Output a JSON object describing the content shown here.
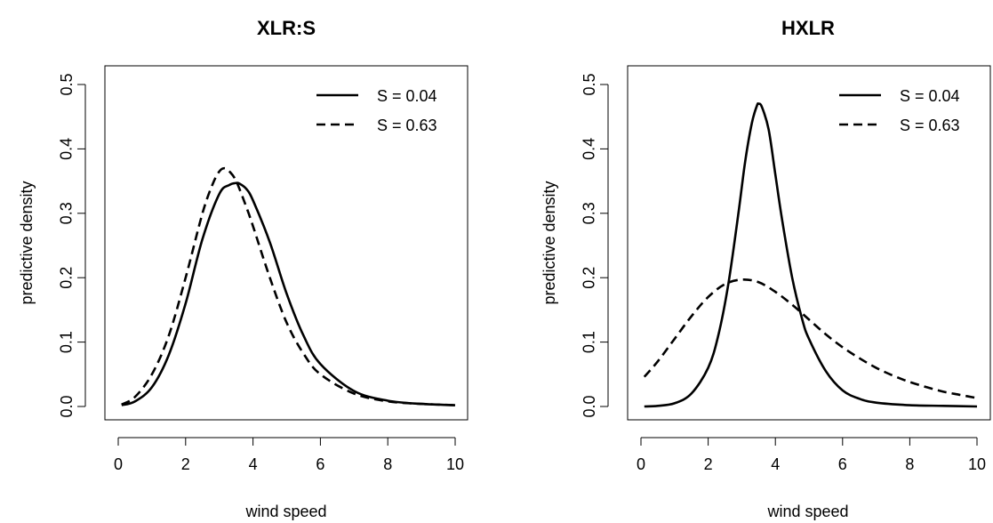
{
  "chart_data": [
    {
      "type": "line",
      "title": "XLR:S",
      "xlabel": "wind speed",
      "ylabel": "predictive density",
      "xlim": [
        0.1,
        10
      ],
      "ylim": [
        0,
        0.5
      ],
      "xticks": [
        "0",
        "2",
        "4",
        "6",
        "8",
        "10"
      ],
      "yticks": [
        "0.0",
        "0.1",
        "0.2",
        "0.3",
        "0.4",
        "0.5"
      ],
      "legend_position": "top-right",
      "series": [
        {
          "name": "S = 0.04",
          "linestyle": "solid",
          "color": "#000000",
          "x": [
            0.1,
            0.5,
            1.0,
            1.5,
            2.0,
            2.5,
            3.0,
            3.3,
            3.5,
            3.6,
            3.8,
            4.0,
            4.5,
            5.0,
            5.5,
            6.0,
            7.0,
            8.0,
            9.0,
            10.0
          ],
          "y": [
            0.002,
            0.008,
            0.03,
            0.08,
            0.16,
            0.26,
            0.33,
            0.344,
            0.347,
            0.346,
            0.338,
            0.32,
            0.255,
            0.175,
            0.11,
            0.066,
            0.024,
            0.009,
            0.004,
            0.002
          ]
        },
        {
          "name": "S = 0.63",
          "linestyle": "dashed",
          "color": "#000000",
          "x": [
            0.1,
            0.5,
            1.0,
            1.5,
            2.0,
            2.5,
            2.8,
            3.0,
            3.15,
            3.3,
            3.5,
            3.8,
            4.0,
            4.5,
            5.0,
            5.5,
            6.0,
            7.0,
            8.0,
            9.0,
            10.0
          ],
          "y": [
            0.003,
            0.015,
            0.05,
            0.11,
            0.2,
            0.3,
            0.345,
            0.365,
            0.37,
            0.365,
            0.35,
            0.31,
            0.28,
            0.2,
            0.13,
            0.082,
            0.05,
            0.02,
            0.008,
            0.004,
            0.002
          ]
        }
      ]
    },
    {
      "type": "line",
      "title": "HXLR",
      "xlabel": "wind speed",
      "ylabel": "predictive density",
      "xlim": [
        0.1,
        10
      ],
      "ylim": [
        0,
        0.5
      ],
      "xticks": [
        "0",
        "2",
        "4",
        "6",
        "8",
        "10"
      ],
      "yticks": [
        "0.0",
        "0.1",
        "0.2",
        "0.3",
        "0.4",
        "0.5"
      ],
      "legend_position": "top-right",
      "series": [
        {
          "name": "S = 0.04",
          "linestyle": "solid",
          "color": "#000000",
          "x": [
            0.1,
            0.5,
            1.0,
            1.5,
            2.0,
            2.3,
            2.6,
            2.9,
            3.1,
            3.3,
            3.45,
            3.5,
            3.6,
            3.8,
            4.0,
            4.2,
            4.5,
            4.8,
            5.0,
            5.5,
            6.0,
            6.5,
            7.0,
            8.0,
            9.0,
            10.0
          ],
          "y": [
            0.0,
            0.001,
            0.005,
            0.02,
            0.06,
            0.11,
            0.19,
            0.3,
            0.38,
            0.44,
            0.467,
            0.47,
            0.465,
            0.43,
            0.36,
            0.29,
            0.2,
            0.135,
            0.105,
            0.055,
            0.025,
            0.012,
            0.006,
            0.002,
            0.001,
            0.0
          ]
        },
        {
          "name": "S = 0.63",
          "linestyle": "dashed",
          "color": "#000000",
          "x": [
            0.1,
            0.5,
            1.0,
            1.5,
            2.0,
            2.5,
            3.0,
            3.5,
            4.0,
            4.5,
            5.0,
            5.5,
            6.0,
            6.5,
            7.0,
            7.5,
            8.0,
            8.5,
            9.0,
            9.5,
            10.0
          ],
          "y": [
            0.046,
            0.07,
            0.105,
            0.14,
            0.17,
            0.19,
            0.197,
            0.193,
            0.178,
            0.158,
            0.135,
            0.112,
            0.092,
            0.075,
            0.06,
            0.048,
            0.038,
            0.03,
            0.023,
            0.018,
            0.013
          ]
        }
      ]
    }
  ]
}
